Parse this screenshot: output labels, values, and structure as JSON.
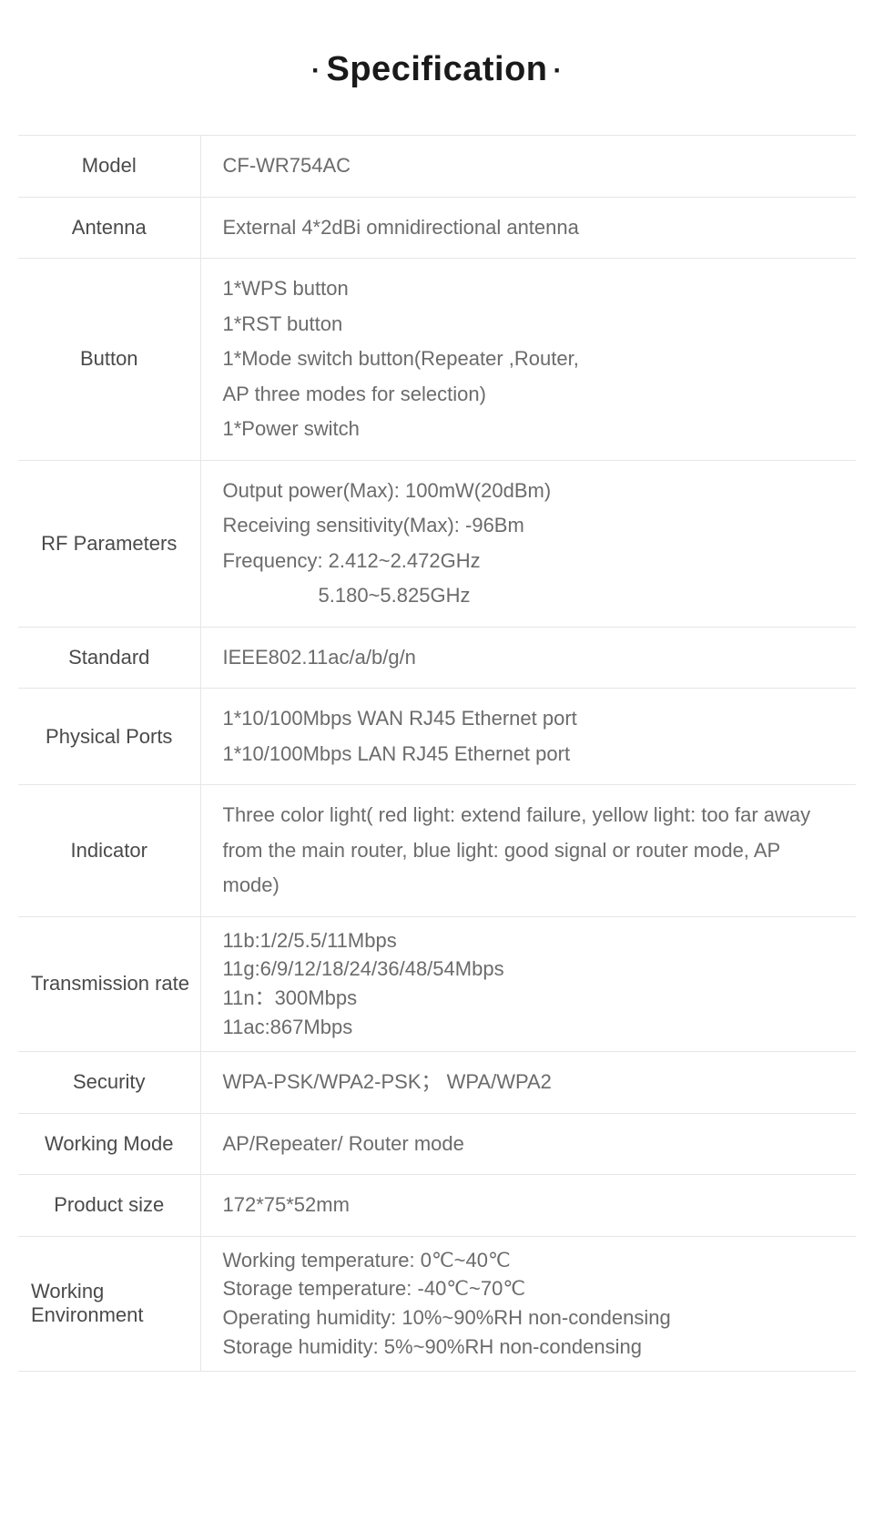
{
  "title": "Specification",
  "table": {
    "rows": [
      {
        "label": "Model",
        "labelAlign": "center",
        "lineClass": "",
        "lines": [
          "CF-WR754AC"
        ]
      },
      {
        "label": "Antenna",
        "labelAlign": "center",
        "lineClass": "",
        "lines": [
          "External 4*2dBi omnidirectional antenna"
        ]
      },
      {
        "label": "Button",
        "labelAlign": "center",
        "lineClass": "",
        "lines": [
          "1*WPS button",
          "1*RST button",
          "1*Mode switch button(Repeater ,Router,",
          "AP three modes for selection)",
          "1*Power switch"
        ]
      },
      {
        "label": "RF Parameters",
        "labelAlign": "center",
        "lineClass": "",
        "lines": [
          "Output power(Max): 100mW(20dBm)",
          "Receiving sensitivity(Max): -96Bm",
          "Frequency: 2.412~2.472GHz"
        ],
        "extraIndentLine": "5.180~5.825GHz"
      },
      {
        "label": "Standard",
        "labelAlign": "center",
        "lineClass": "",
        "lines": [
          "IEEE802.11ac/a/b/g/n"
        ]
      },
      {
        "label": "Physical Ports",
        "labelAlign": "center",
        "lineClass": "",
        "lines": [
          "1*10/100Mbps WAN RJ45 Ethernet port",
          "1*10/100Mbps LAN RJ45 Ethernet port"
        ]
      },
      {
        "label": "Indicator",
        "labelAlign": "center",
        "lineClass": "",
        "lines": [
          "Three color light( red light: extend failure, yellow light: too far away from the main router, blue light: good signal or router mode, AP mode)"
        ]
      },
      {
        "label": "Transmission rate",
        "labelAlign": "left",
        "lineClass": "tight",
        "lines": [
          "11b:1/2/5.5/11Mbps",
          "11g:6/9/12/18/24/36/48/54Mbps",
          "11n：300Mbps",
          "11ac:867Mbps"
        ]
      },
      {
        "label": "Security",
        "labelAlign": "center",
        "lineClass": "",
        "lines": [
          "WPA-PSK/WPA2-PSK；   WPA/WPA2"
        ]
      },
      {
        "label": "Working Mode",
        "labelAlign": "center",
        "lineClass": "",
        "lines": [
          "AP/Repeater/ Router mode"
        ]
      },
      {
        "label": "Product size",
        "labelAlign": "center",
        "lineClass": "",
        "lines": [
          "172*75*52mm"
        ]
      },
      {
        "label": "Working Environment",
        "labelAlign": "left",
        "lineClass": "tight",
        "lines": [
          "Working temperature: 0℃~40℃",
          "Storage temperature: -40℃~70℃",
          "Operating humidity: 10%~90%RH non-condensing",
          "Storage humidity: 5%~90%RH non-condensing"
        ]
      }
    ]
  },
  "colors": {
    "border": "#e6e6e6",
    "titleText": "#1a1a1a",
    "labelText": "#4a4a4a",
    "valueText": "#6b6b6b",
    "background": "#ffffff"
  },
  "typography": {
    "titleFontSize": 38,
    "cellFontSize": 22,
    "titleWeight": 700
  },
  "layout": {
    "pageWidth": 960,
    "tableWidth": 920,
    "labelColWidth": 200
  }
}
